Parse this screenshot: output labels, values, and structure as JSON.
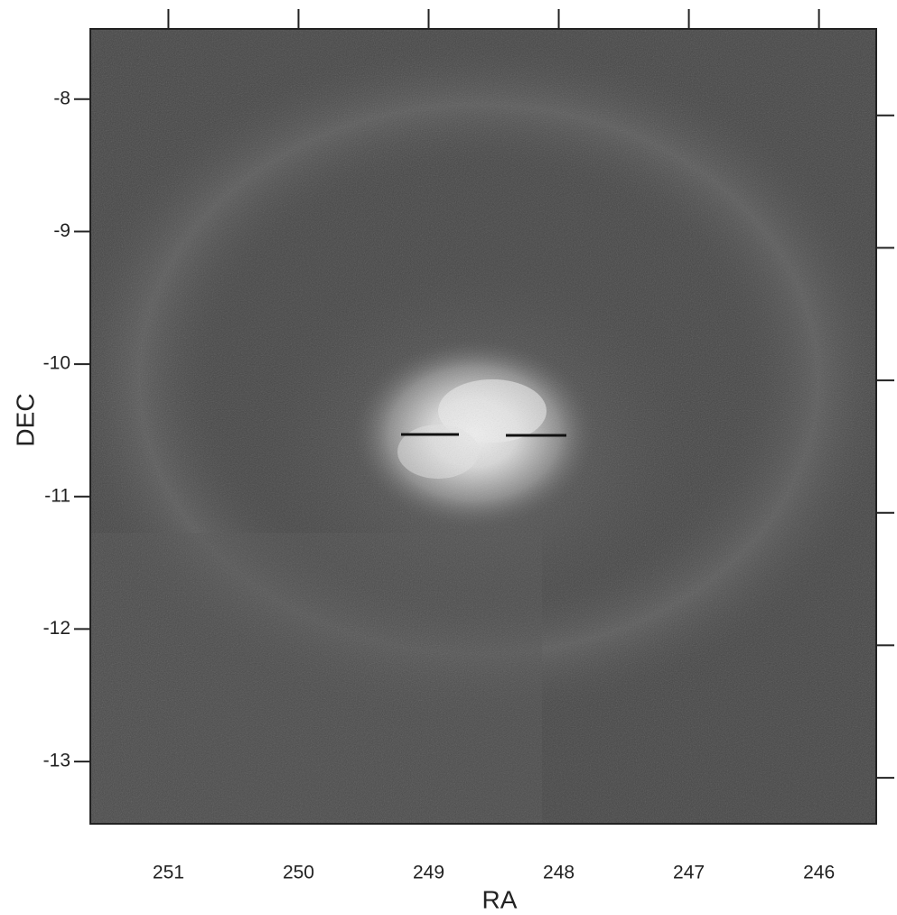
{
  "chart_data": {
    "type": "image",
    "xlabel": "RA",
    "ylabel": "DEC",
    "xlim": [
      251.6,
      245.56
    ],
    "xticks": [
      251,
      250,
      249,
      248,
      247,
      246
    ],
    "ylim": [
      -13.47,
      -7.47
    ],
    "yticks": [
      -8,
      -9,
      -10,
      -11,
      -12,
      -13
    ]
  }
}
